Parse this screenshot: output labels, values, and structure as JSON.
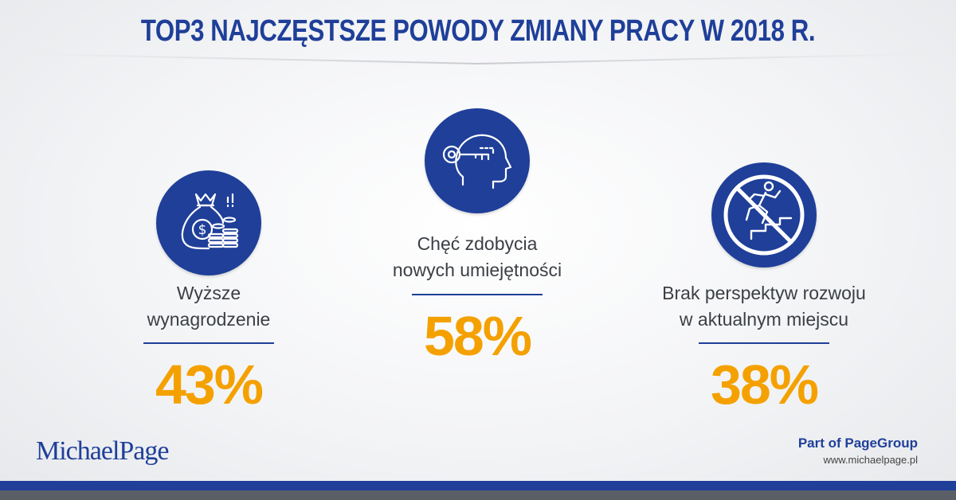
{
  "title": "TOP3 NAJCZĘSTSZE POWODY ZMIANY PRACY W 2018 R.",
  "reasons": [
    {
      "label_line1": "Wyższe",
      "label_line2": "wynagrodzenie",
      "percent": "43%",
      "icon": "money-bag-icon"
    },
    {
      "label_line1": "Chęć zdobycia",
      "label_line2": "nowych umiejętności",
      "percent": "58%",
      "icon": "head-key-icon"
    },
    {
      "label_line1": "Brak perspektyw rozwoju",
      "label_line2": "w aktualnym miejscu",
      "percent": "38%",
      "icon": "no-career-stairs-icon"
    }
  ],
  "footer": {
    "logo": "MichaelPage",
    "part_of": "Part of PageGroup",
    "url": "www.michaelpage.pl"
  },
  "colors": {
    "brand_blue": "#1f3f99",
    "accent_orange": "#f4a100",
    "text_grey": "#3b3f44"
  }
}
